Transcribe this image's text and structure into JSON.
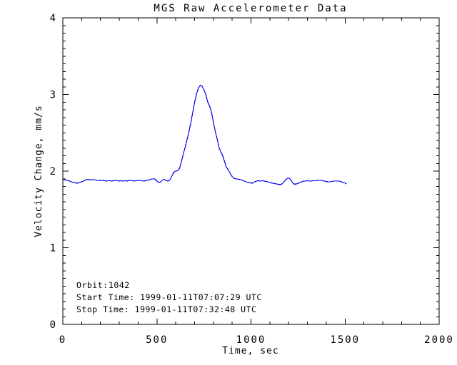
{
  "chart_data": {
    "type": "line",
    "title": "MGS Raw Accelerometer Data",
    "xlabel": "Time, sec",
    "ylabel": "Velocity Change, mm/s",
    "xlim": [
      0,
      2000
    ],
    "ylim": [
      0,
      4
    ],
    "x_ticks": [
      0,
      500,
      1000,
      1500,
      2000
    ],
    "x_tick_labels": [
      "0",
      "500",
      "1000",
      "1500",
      "2000"
    ],
    "x_minor_interval": 100,
    "y_ticks": [
      0,
      1,
      2,
      3,
      4
    ],
    "y_tick_labels": [
      "0",
      "1",
      "2",
      "3",
      "4"
    ],
    "y_minor_interval": 0.1,
    "grid": false,
    "legend": "none",
    "line_color": "#0000ee",
    "axis_color": "#000000",
    "background_color": "#ffffff",
    "annotations": {
      "orbit_label": "Orbit:",
      "orbit_value": "1042",
      "start_time": "Start Time: 1999-01-11T07:07:29 UTC",
      "stop_time": "Stop Time: 1999-01-11T07:32:48 UTC"
    },
    "series": [
      {
        "name": "velocity_change",
        "x": [
          0,
          10,
          20,
          30,
          40,
          50,
          60,
          70,
          80,
          90,
          100,
          110,
          120,
          130,
          140,
          150,
          160,
          170,
          180,
          190,
          200,
          210,
          220,
          230,
          240,
          250,
          260,
          270,
          280,
          290,
          300,
          310,
          320,
          330,
          340,
          350,
          360,
          370,
          380,
          390,
          400,
          410,
          420,
          430,
          440,
          450,
          460,
          470,
          480,
          490,
          500,
          510,
          520,
          530,
          540,
          550,
          560,
          570,
          580,
          590,
          600,
          610,
          620,
          630,
          640,
          650,
          660,
          670,
          680,
          690,
          700,
          710,
          720,
          730,
          740,
          750,
          760,
          770,
          780,
          790,
          800,
          810,
          820,
          830,
          840,
          850,
          860,
          870,
          880,
          890,
          900,
          910,
          920,
          930,
          940,
          950,
          960,
          970,
          980,
          990,
          1000,
          1010,
          1020,
          1030,
          1040,
          1050,
          1060,
          1070,
          1080,
          1090,
          1100,
          1110,
          1120,
          1130,
          1140,
          1150,
          1160,
          1170,
          1180,
          1190,
          1200,
          1210,
          1220,
          1230,
          1240,
          1250,
          1260,
          1270,
          1280,
          1290,
          1300,
          1310,
          1320,
          1330,
          1340,
          1350,
          1360,
          1370,
          1380,
          1390,
          1400,
          1410,
          1420,
          1430,
          1440,
          1450,
          1460,
          1470,
          1480,
          1490,
          1500,
          1507
        ],
        "y": [
          1.895,
          1.885,
          1.88,
          1.875,
          1.865,
          1.855,
          1.85,
          1.845,
          1.845,
          1.85,
          1.86,
          1.87,
          1.885,
          1.89,
          1.89,
          1.885,
          1.89,
          1.885,
          1.88,
          1.88,
          1.875,
          1.88,
          1.875,
          1.87,
          1.875,
          1.875,
          1.87,
          1.875,
          1.88,
          1.875,
          1.87,
          1.875,
          1.87,
          1.875,
          1.87,
          1.875,
          1.88,
          1.875,
          1.87,
          1.875,
          1.875,
          1.88,
          1.875,
          1.87,
          1.875,
          1.88,
          1.885,
          1.895,
          1.9,
          1.895,
          1.87,
          1.85,
          1.86,
          1.885,
          1.89,
          1.875,
          1.87,
          1.89,
          1.94,
          1.985,
          2.0,
          2.005,
          2.035,
          2.12,
          2.22,
          2.31,
          2.41,
          2.51,
          2.63,
          2.76,
          2.89,
          3.0,
          3.08,
          3.12,
          3.11,
          3.06,
          3.0,
          2.9,
          2.85,
          2.77,
          2.64,
          2.52,
          2.42,
          2.31,
          2.25,
          2.2,
          2.12,
          2.05,
          2.01,
          1.97,
          1.93,
          1.905,
          1.9,
          1.895,
          1.89,
          1.885,
          1.875,
          1.865,
          1.855,
          1.85,
          1.845,
          1.845,
          1.86,
          1.87,
          1.875,
          1.87,
          1.875,
          1.87,
          1.865,
          1.86,
          1.85,
          1.845,
          1.84,
          1.835,
          1.83,
          1.825,
          1.825,
          1.845,
          1.875,
          1.9,
          1.91,
          1.895,
          1.85,
          1.83,
          1.83,
          1.84,
          1.85,
          1.86,
          1.87,
          1.87,
          1.875,
          1.87,
          1.87,
          1.875,
          1.875,
          1.875,
          1.88,
          1.88,
          1.875,
          1.87,
          1.865,
          1.86,
          1.86,
          1.865,
          1.87,
          1.87,
          1.87,
          1.87,
          1.86,
          1.85,
          1.845,
          1.83
        ]
      }
    ]
  }
}
